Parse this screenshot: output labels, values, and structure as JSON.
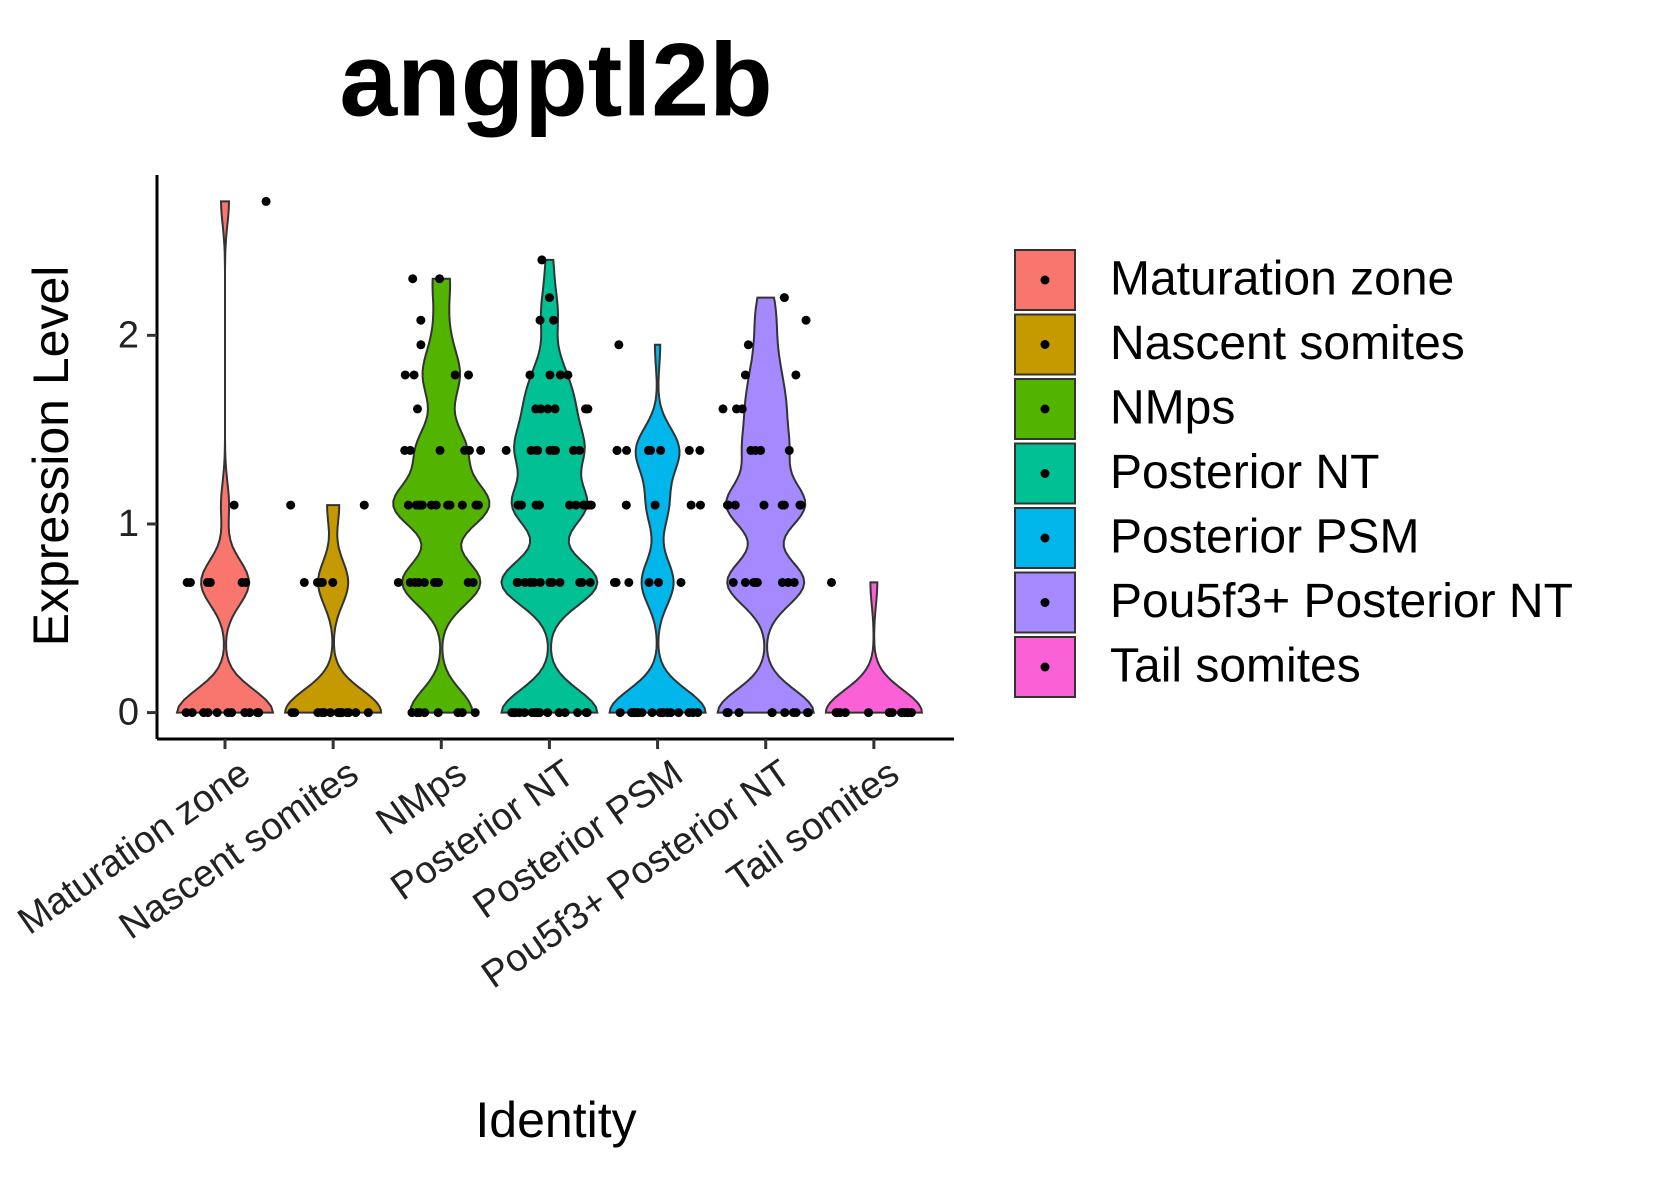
{
  "chart_data": {
    "type": "violin",
    "title": "angptl2b",
    "x_label": "Identity",
    "y_label": "Expression Level",
    "categories": [
      "Maturation zone",
      "Nascent somites",
      "NMps",
      "Posterior NT",
      "Posterior PSM",
      "Pou5f3+ Posterior NT",
      "Tail somites"
    ],
    "ylim": [
      -0.14,
      2.85
    ],
    "yticks": [
      0,
      1,
      2
    ],
    "series": [
      {
        "name": "Maturation zone",
        "color": "#F8766D",
        "values": [
          0,
          0,
          0,
          0,
          0,
          0,
          0,
          0,
          0,
          0,
          0,
          0,
          0.69,
          0.69,
          0.69,
          0.69,
          0.69,
          0.69,
          1.1,
          2.71
        ]
      },
      {
        "name": "Nascent somites",
        "color": "#C49A00",
        "values": [
          0,
          0,
          0,
          0,
          0,
          0,
          0,
          0,
          0,
          0,
          0,
          0,
          0,
          0,
          0,
          0,
          0.69,
          0.69,
          0.69,
          0.69,
          0.69,
          1.1,
          1.1
        ]
      },
      {
        "name": "NMps",
        "color": "#53B400",
        "values": [
          0,
          0,
          0,
          0,
          0,
          0,
          0,
          0,
          0.69,
          0.69,
          0.69,
          0.69,
          0.69,
          0.69,
          0.69,
          0.69,
          0.69,
          0.69,
          1.1,
          1.1,
          1.1,
          1.1,
          1.1,
          1.1,
          1.1,
          1.1,
          1.1,
          1.1,
          1.1,
          1.1,
          1.39,
          1.39,
          1.39,
          1.39,
          1.39,
          1.39,
          1.61,
          1.79,
          1.79,
          1.79,
          1.79,
          1.95,
          2.08,
          2.3,
          2.3
        ]
      },
      {
        "name": "Posterior NT",
        "color": "#00C094",
        "values": [
          0,
          0,
          0,
          0,
          0,
          0,
          0,
          0,
          0,
          0,
          0,
          0,
          0,
          0,
          0,
          0,
          0.69,
          0.69,
          0.69,
          0.69,
          0.69,
          0.69,
          0.69,
          0.69,
          0.69,
          0.69,
          0.69,
          0.69,
          0.69,
          0.69,
          0.69,
          0.69,
          1.1,
          1.1,
          1.1,
          1.1,
          1.1,
          1.1,
          1.1,
          1.1,
          1.1,
          1.1,
          1.1,
          1.1,
          1.39,
          1.39,
          1.39,
          1.39,
          1.39,
          1.39,
          1.39,
          1.39,
          1.39,
          1.39,
          1.61,
          1.61,
          1.61,
          1.61,
          1.61,
          1.61,
          1.79,
          1.79,
          1.79,
          1.79,
          2.08,
          2.08,
          2.2,
          2.4
        ]
      },
      {
        "name": "Posterior PSM",
        "color": "#00B6EB",
        "values": [
          0,
          0,
          0,
          0,
          0,
          0,
          0,
          0,
          0,
          0,
          0,
          0,
          0,
          0,
          0,
          0,
          0,
          0,
          0.69,
          0.69,
          0.69,
          0.69,
          0.69,
          0.69,
          1.1,
          1.1,
          1.1,
          1.1,
          1.39,
          1.39,
          1.39,
          1.39,
          1.39,
          1.39,
          1.39,
          1.39,
          1.95
        ]
      },
      {
        "name": "Pou5f3+ Posterior NT",
        "color": "#A58AFF",
        "values": [
          0,
          0,
          0,
          0,
          0,
          0,
          0,
          0,
          0,
          0,
          0.69,
          0.69,
          0.69,
          0.69,
          0.69,
          0.69,
          0.69,
          0.69,
          1.1,
          1.1,
          1.1,
          1.1,
          1.1,
          1.1,
          1.1,
          1.1,
          1.39,
          1.39,
          1.39,
          1.39,
          1.61,
          1.61,
          1.61,
          1.79,
          1.79,
          1.95,
          2.08,
          2.2
        ]
      },
      {
        "name": "Tail somites",
        "color": "#FB61D7",
        "values": [
          0,
          0,
          0,
          0,
          0,
          0,
          0,
          0,
          0,
          0,
          0,
          0,
          0,
          0,
          0.69
        ]
      }
    ]
  }
}
